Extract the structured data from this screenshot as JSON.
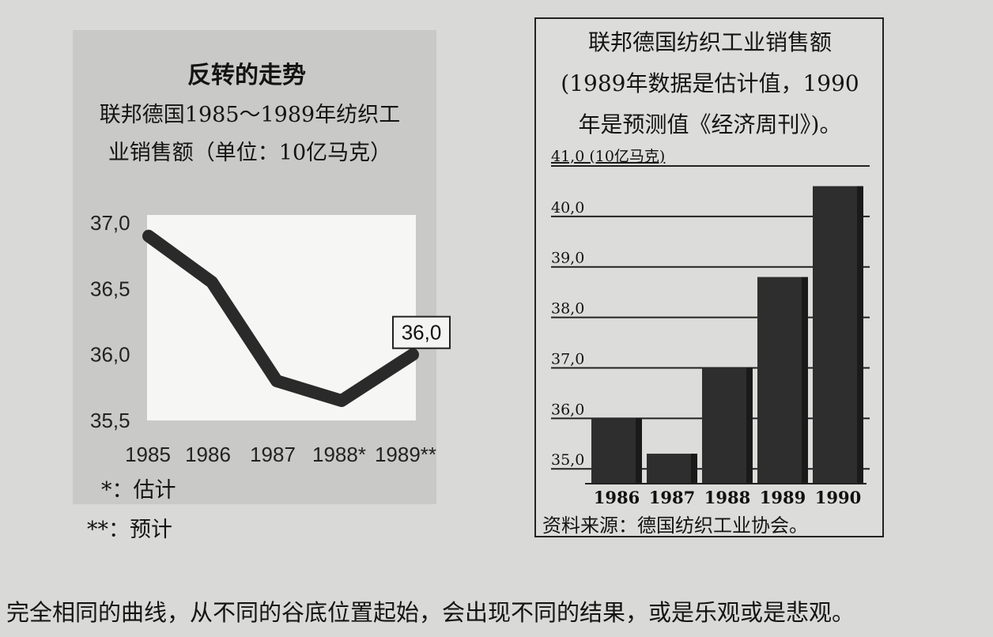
{
  "left_chart": {
    "title": "反转的走势",
    "subtitle_line1": "联邦德国1985～1989年纺织工",
    "subtitle_line2": "业销售额（单位：10亿马克）",
    "footnote_estimate": "*：估计",
    "footnote_forecast": "**：预计",
    "callout": "36,0"
  },
  "right_chart": {
    "title_line1": "联邦德国纺织工业销售额",
    "title_line2": "(1989年数据是估计值，1990",
    "title_line3": "年是预测值《经济周刊》)。",
    "unit_label": "41,0 (10亿马克)",
    "source": "资料来源：德国纺织工业协会。"
  },
  "caption": "完全相同的曲线，从不同的谷底位置起始，会出现不同的结果，或是乐观或是悲观。",
  "colors": {
    "line": "#2a2a2a",
    "bar": "#2e2e2e",
    "plot_bg": "#f6f6f4"
  },
  "chart_data": [
    {
      "type": "line",
      "title": "反转的走势",
      "categories": [
        "1985",
        "1986",
        "1987",
        "1988*",
        "1989**"
      ],
      "values": [
        36.9,
        36.55,
        35.8,
        35.65,
        36.0
      ],
      "ylim": [
        35.5,
        37.0
      ],
      "yticks": [
        37.0,
        36.5,
        36.0,
        35.5
      ],
      "ytick_labels": [
        "37,0",
        "36,5",
        "36,0",
        "35,5"
      ],
      "xlabel": "",
      "ylabel": "10亿马克"
    },
    {
      "type": "bar",
      "title": "联邦德国纺织工业销售额",
      "categories": [
        "1986",
        "1987",
        "1988",
        "1989",
        "1990"
      ],
      "values": [
        36.0,
        35.3,
        37.0,
        38.8,
        40.6
      ],
      "ylim": [
        34.8,
        41.0
      ],
      "yticks": [
        41.0,
        40.0,
        39.0,
        38.0,
        37.0,
        36.0,
        35.0
      ],
      "ytick_labels": [
        "41,0",
        "40,0",
        "39,0",
        "38,0",
        "37,0",
        "36,0",
        "35,0"
      ],
      "xlabel": "",
      "ylabel": "10亿马克"
    }
  ]
}
